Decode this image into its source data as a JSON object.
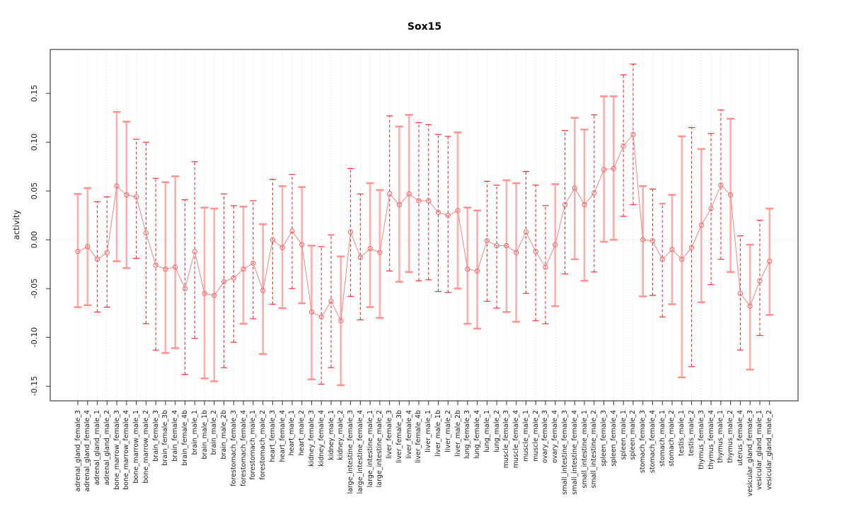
{
  "page": {
    "title": "Sox15"
  },
  "chart_data": {
    "type": "scatter",
    "error_bars": true,
    "title": "Sox15",
    "xlabel": "",
    "ylabel": "activity",
    "ylim": [
      -0.165,
      0.195
    ],
    "y_ticks": [
      -0.15,
      -0.1,
      -0.05,
      0.0,
      0.05,
      0.1,
      0.15
    ],
    "y_tick_labels": [
      "-0.15",
      "-0.10",
      "-0.05",
      "0.00",
      "0.05",
      "0.10",
      "0.15"
    ],
    "grid": "dotted vertical gridline at every category; dotted horizontal line at y=0",
    "legend": "none",
    "categories": [
      "adrenal_gland_female_3",
      "adrenal_gland_female_4",
      "adrenal_gland_male_1",
      "adrenal_gland_male_2",
      "bone_marrow_female_3",
      "bone_marrow_female_4",
      "bone_marrow_male_1",
      "bone_marrow_male_2",
      "brain_female_3",
      "brain_female_3b",
      "brain_female_4",
      "brain_female_4b",
      "brain_male_1",
      "brain_male_1b",
      "brain_male_2",
      "brain_male_2b",
      "forestomach_female_3",
      "forestomach_female_4",
      "forestomach_male_1",
      "forestomach_male_2",
      "heart_female_3",
      "heart_female_4",
      "heart_male_1",
      "heart_male_2",
      "kidney_female_3",
      "kidney_female_4",
      "kidney_male_1",
      "kidney_male_2",
      "large_intestine_female_3",
      "large_intestine_female_4",
      "large_intestine_male_1",
      "large_intestine_male_2",
      "liver_female_3",
      "liver_female_3b",
      "liver_female_4",
      "liver_female_4b",
      "liver_male_1",
      "liver_male_1b",
      "liver_male_2",
      "liver_male_2b",
      "lung_female_3",
      "lung_female_4",
      "lung_male_1",
      "lung_male_2",
      "muscle_female_3",
      "muscle_female_4",
      "muscle_male_1",
      "muscle_male_2",
      "ovary_female_3",
      "ovary_female_4",
      "small_intestine_female_3",
      "small_intestine_female_4",
      "small_intestine_male_1",
      "small_intestine_male_2",
      "spleen_female_3",
      "spleen_female_4",
      "spleen_male_1",
      "spleen_male_2",
      "stomach_female_3",
      "stomach_female_4",
      "stomach_male_1",
      "stomach_male_2",
      "testis_male_1",
      "testis_male_2",
      "thymus_female_3",
      "thymus_female_4",
      "thymus_male_1",
      "thymus_male_2",
      "uterus_female_4",
      "vesicular_gland_female_3",
      "vesicular_gland_male_1",
      "vesicular_gland_male_2"
    ],
    "series": [
      {
        "name": "activity",
        "values": [
          -0.012,
          -0.007,
          -0.02,
          -0.013,
          0.055,
          0.046,
          0.044,
          0.007,
          -0.026,
          -0.03,
          -0.028,
          -0.05,
          -0.012,
          -0.055,
          -0.057,
          -0.043,
          -0.039,
          -0.03,
          -0.024,
          -0.052,
          0.0,
          -0.008,
          0.009,
          -0.005,
          -0.074,
          -0.079,
          -0.063,
          -0.083,
          0.008,
          -0.018,
          -0.009,
          -0.013,
          0.047,
          0.036,
          0.047,
          0.04,
          0.04,
          0.028,
          0.025,
          0.03,
          -0.03,
          -0.032,
          -0.001,
          -0.006,
          -0.006,
          -0.013,
          0.008,
          -0.012,
          -0.028,
          -0.005,
          0.036,
          0.053,
          0.036,
          0.048,
          0.072,
          0.073,
          0.096,
          0.108,
          0.0,
          -0.001,
          -0.02,
          -0.01,
          -0.02,
          -0.008,
          0.015,
          0.032,
          0.056,
          0.046,
          -0.055,
          -0.068,
          -0.042,
          -0.022
        ],
        "error_high": [
          0.047,
          0.053,
          0.039,
          0.044,
          0.131,
          0.121,
          0.103,
          0.1,
          0.063,
          0.059,
          0.065,
          0.041,
          0.08,
          0.033,
          0.032,
          0.047,
          0.035,
          0.034,
          0.04,
          0.016,
          0.062,
          0.055,
          0.067,
          0.054,
          -0.006,
          -0.007,
          0.005,
          -0.017,
          0.073,
          0.047,
          0.058,
          0.051,
          0.127,
          0.116,
          0.128,
          0.12,
          0.118,
          0.108,
          0.106,
          0.11,
          0.033,
          0.03,
          0.06,
          0.056,
          0.061,
          0.058,
          0.07,
          0.056,
          0.035,
          0.057,
          0.112,
          0.125,
          0.113,
          0.128,
          0.147,
          0.147,
          0.169,
          0.18,
          0.055,
          0.052,
          0.037,
          0.046,
          0.106,
          0.115,
          0.093,
          0.109,
          0.133,
          0.124,
          0.004,
          -0.005,
          0.02,
          0.032
        ],
        "error_low": [
          -0.069,
          -0.067,
          -0.074,
          -0.069,
          -0.022,
          -0.029,
          -0.019,
          -0.086,
          -0.113,
          -0.116,
          -0.111,
          -0.138,
          -0.101,
          -0.142,
          -0.145,
          -0.131,
          -0.105,
          -0.086,
          -0.081,
          -0.117,
          -0.066,
          -0.07,
          -0.05,
          -0.065,
          -0.143,
          -0.148,
          -0.131,
          -0.149,
          -0.058,
          -0.082,
          -0.069,
          -0.08,
          -0.032,
          -0.043,
          -0.033,
          -0.042,
          -0.041,
          -0.053,
          -0.054,
          -0.05,
          -0.086,
          -0.091,
          -0.063,
          -0.07,
          -0.074,
          -0.084,
          -0.055,
          -0.083,
          -0.086,
          -0.068,
          -0.035,
          -0.02,
          -0.042,
          -0.033,
          -0.002,
          0.0,
          0.024,
          0.036,
          -0.058,
          -0.057,
          -0.079,
          -0.066,
          -0.141,
          -0.13,
          -0.064,
          -0.046,
          -0.02,
          -0.033,
          -0.113,
          -0.133,
          -0.098,
          -0.077
        ],
        "bar_styles": [
          "pink",
          "pink",
          "dashed",
          "dashed",
          "pink",
          "pink",
          "dashed",
          "dashed",
          "dashed",
          "pink",
          "pink",
          "dashed",
          "dashed",
          "pink",
          "pink",
          "dashed",
          "dashed",
          "pink",
          "dashed",
          "pink",
          "dashed",
          "pink",
          "dashed",
          "pink",
          "pink",
          "dashed",
          "dashed",
          "pink",
          "dashed",
          "dashed",
          "pink",
          "pink",
          "dashed",
          "pink",
          "pink",
          "dashed",
          "dashed",
          "dashed",
          "dashed",
          "pink",
          "pink",
          "pink",
          "dashed",
          "dashed",
          "pink",
          "pink",
          "dashed",
          "dashed",
          "dashed",
          "pink",
          "dashed",
          "pink",
          "pink",
          "dashed",
          "pink",
          "pink",
          "dashed",
          "dashed",
          "pink",
          "dashed",
          "dashed",
          "pink",
          "pink",
          "dashed",
          "pink",
          "dashed",
          "dashed",
          "pink",
          "dashed",
          "pink",
          "dashed",
          "pink"
        ]
      }
    ],
    "colors": {
      "line": "#f58585",
      "point_stroke": "#f26e6e",
      "pink_bar": "#ffadad",
      "pink_cap": "#ff9494",
      "dashed_bar": "#e03939",
      "gridline": "#dcdcdc",
      "zero_line": "#d8d8d8",
      "axis_box": "#4d4d4d",
      "tick": "#333333",
      "text": "#1a1a1a"
    }
  }
}
